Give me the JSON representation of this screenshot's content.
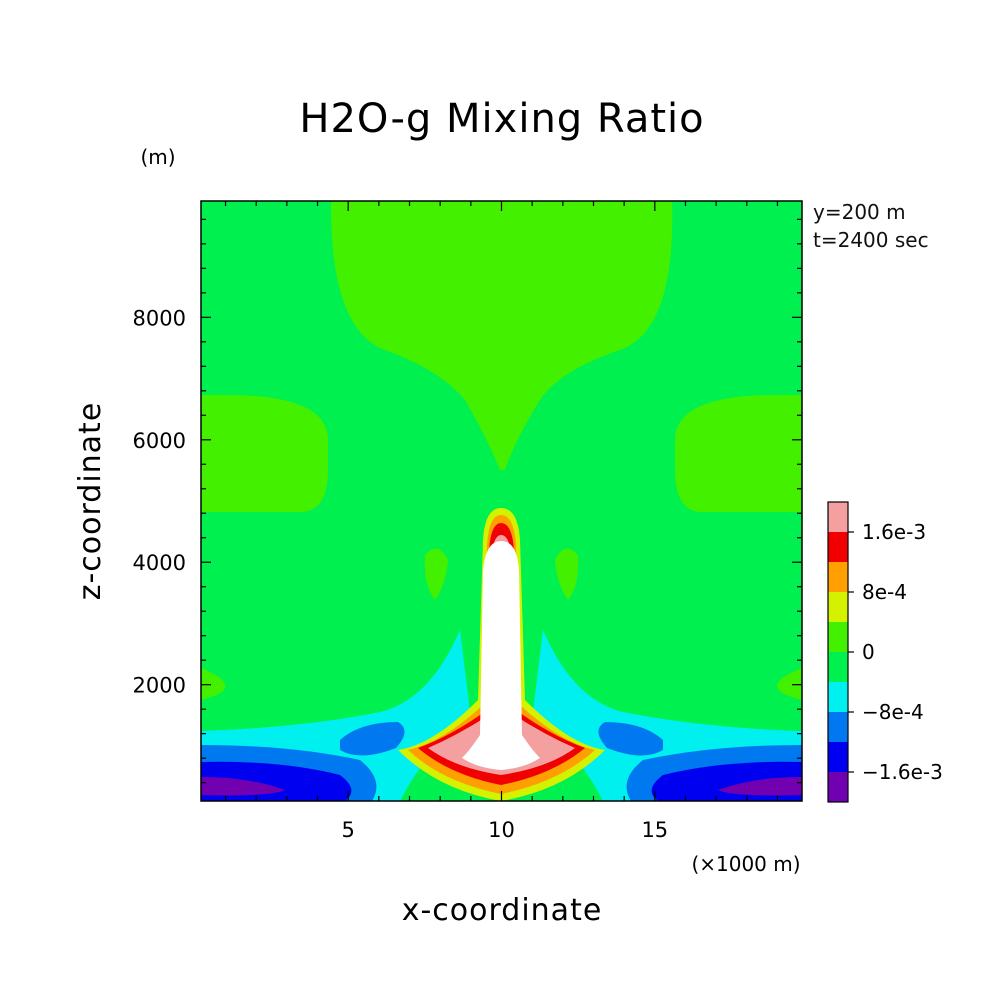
{
  "chart_data": {
    "type": "contour",
    "title": "H2O-g Mixing Ratio",
    "xlabel": "x-coordinate",
    "ylabel": "z-coordinate",
    "x_unit": "(×1000 m)",
    "y_unit": "(m)",
    "xlim": [
      0.2,
      19.8
    ],
    "ylim": [
      100,
      9900
    ],
    "x_ticks": [
      5,
      10,
      15
    ],
    "y_ticks": [
      2000,
      4000,
      6000,
      8000
    ],
    "annotations": [
      "y=200 m",
      "t=2400 sec"
    ],
    "colorbar": {
      "labels": [
        {
          "value": 0.0016,
          "text": "1.6e-3"
        },
        {
          "value": 0.0008,
          "text": "8e-4"
        },
        {
          "value": 0,
          "text": "0"
        },
        {
          "value": -0.0008,
          "text": "−8e-4"
        },
        {
          "value": -0.0016,
          "text": "−1.6e-3"
        }
      ],
      "levels": [
        {
          "range": [
            0.0016,
            0.002
          ],
          "color": "#f4a0a0"
        },
        {
          "range": [
            0.0012,
            0.0016
          ],
          "color": "#f00000"
        },
        {
          "range": [
            0.0008,
            0.0012
          ],
          "color": "#ff9f00"
        },
        {
          "range": [
            0.0004,
            0.0008
          ],
          "color": "#d4f200"
        },
        {
          "range": [
            0,
            0.0004
          ],
          "color": "#42f000"
        },
        {
          "range": [
            -0.0004,
            0
          ],
          "color": "#00f050"
        },
        {
          "range": [
            -0.0008,
            -0.0004
          ],
          "color": "#00f0f0"
        },
        {
          "range": [
            -0.0012,
            -0.0008
          ],
          "color": "#0078f0"
        },
        {
          "range": [
            -0.0016,
            -0.0012
          ],
          "color": "#0000f0"
        },
        {
          "range": [
            -0.002,
            -0.0016
          ],
          "color": "#7000b0"
        }
      ],
      "above_max_color": "#ffffff"
    }
  }
}
